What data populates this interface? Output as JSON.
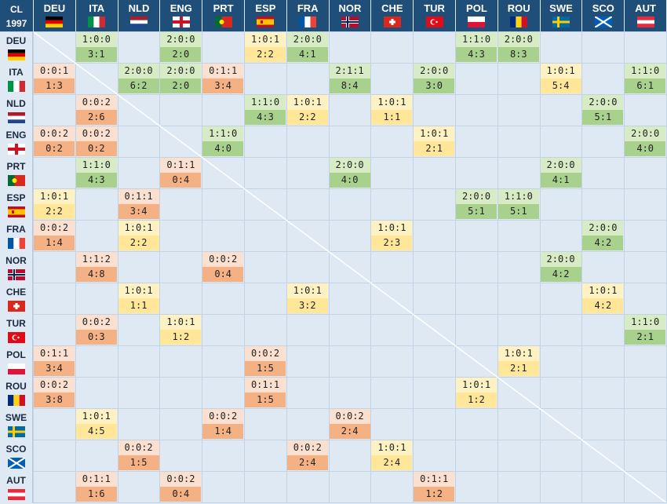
{
  "corner": {
    "line1": "CL",
    "line2": "1997"
  },
  "teams": [
    "DEU",
    "ITA",
    "NLD",
    "ENG",
    "PRT",
    "ESP",
    "FRA",
    "NOR",
    "CHE",
    "TUR",
    "POL",
    "ROU",
    "SWE",
    "SCO",
    "AUT"
  ],
  "legend_colors": {
    "win": "#a9d18e",
    "draw": "#ffe699",
    "loss": "#f4b183",
    "header": "#1f4e79"
  },
  "cells": [
    {
      "row": "DEU",
      "col": "ITA",
      "record": "1:0:0",
      "goals": "3:1",
      "result": "win"
    },
    {
      "row": "DEU",
      "col": "ENG",
      "record": "2:0:0",
      "goals": "2:0",
      "result": "win"
    },
    {
      "row": "DEU",
      "col": "ESP",
      "record": "1:0:1",
      "goals": "2:2",
      "result": "draw"
    },
    {
      "row": "DEU",
      "col": "FRA",
      "record": "2:0:0",
      "goals": "4:1",
      "result": "win"
    },
    {
      "row": "DEU",
      "col": "POL",
      "record": "1:1:0",
      "goals": "4:3",
      "result": "win"
    },
    {
      "row": "DEU",
      "col": "ROU",
      "record": "2:0:0",
      "goals": "8:3",
      "result": "win"
    },
    {
      "row": "ITA",
      "col": "DEU",
      "record": "0:0:1",
      "goals": "1:3",
      "result": "loss"
    },
    {
      "row": "ITA",
      "col": "NLD",
      "record": "2:0:0",
      "goals": "6:2",
      "result": "win"
    },
    {
      "row": "ITA",
      "col": "ENG",
      "record": "2:0:0",
      "goals": "2:0",
      "result": "win"
    },
    {
      "row": "ITA",
      "col": "PRT",
      "record": "0:1:1",
      "goals": "3:4",
      "result": "loss"
    },
    {
      "row": "ITA",
      "col": "NOR",
      "record": "2:1:1",
      "goals": "8:4",
      "result": "win"
    },
    {
      "row": "ITA",
      "col": "TUR",
      "record": "2:0:0",
      "goals": "3:0",
      "result": "win"
    },
    {
      "row": "ITA",
      "col": "SWE",
      "record": "1:0:1",
      "goals": "5:4",
      "result": "draw"
    },
    {
      "row": "ITA",
      "col": "AUT",
      "record": "1:1:0",
      "goals": "6:1",
      "result": "win"
    },
    {
      "row": "NLD",
      "col": "ITA",
      "record": "0:0:2",
      "goals": "2:6",
      "result": "loss"
    },
    {
      "row": "NLD",
      "col": "ESP",
      "record": "1:1:0",
      "goals": "4:3",
      "result": "win"
    },
    {
      "row": "NLD",
      "col": "FRA",
      "record": "1:0:1",
      "goals": "2:2",
      "result": "draw"
    },
    {
      "row": "NLD",
      "col": "CHE",
      "record": "1:0:1",
      "goals": "1:1",
      "result": "draw"
    },
    {
      "row": "NLD",
      "col": "SCO",
      "record": "2:0:0",
      "goals": "5:1",
      "result": "win"
    },
    {
      "row": "ENG",
      "col": "DEU",
      "record": "0:0:2",
      "goals": "0:2",
      "result": "loss"
    },
    {
      "row": "ENG",
      "col": "ITA",
      "record": "0:0:2",
      "goals": "0:2",
      "result": "loss"
    },
    {
      "row": "ENG",
      "col": "PRT",
      "record": "1:1:0",
      "goals": "4:0",
      "result": "win"
    },
    {
      "row": "ENG",
      "col": "TUR",
      "record": "1:0:1",
      "goals": "2:1",
      "result": "draw"
    },
    {
      "row": "ENG",
      "col": "AUT",
      "record": "2:0:0",
      "goals": "4:0",
      "result": "win"
    },
    {
      "row": "PRT",
      "col": "ITA",
      "record": "1:1:0",
      "goals": "4:3",
      "result": "win"
    },
    {
      "row": "PRT",
      "col": "ENG",
      "record": "0:1:1",
      "goals": "0:4",
      "result": "loss"
    },
    {
      "row": "PRT",
      "col": "NOR",
      "record": "2:0:0",
      "goals": "4:0",
      "result": "win"
    },
    {
      "row": "PRT",
      "col": "SWE",
      "record": "2:0:0",
      "goals": "4:1",
      "result": "win"
    },
    {
      "row": "ESP",
      "col": "DEU",
      "record": "1:0:1",
      "goals": "2:2",
      "result": "draw"
    },
    {
      "row": "ESP",
      "col": "NLD",
      "record": "0:1:1",
      "goals": "3:4",
      "result": "loss"
    },
    {
      "row": "ESP",
      "col": "POL",
      "record": "2:0:0",
      "goals": "5:1",
      "result": "win"
    },
    {
      "row": "ESP",
      "col": "ROU",
      "record": "1:1:0",
      "goals": "5:1",
      "result": "win"
    },
    {
      "row": "FRA",
      "col": "DEU",
      "record": "0:0:2",
      "goals": "1:4",
      "result": "loss"
    },
    {
      "row": "FRA",
      "col": "NLD",
      "record": "1:0:1",
      "goals": "2:2",
      "result": "draw"
    },
    {
      "row": "FRA",
      "col": "CHE",
      "record": "1:0:1",
      "goals": "2:3",
      "result": "draw"
    },
    {
      "row": "FRA",
      "col": "SCO",
      "record": "2:0:0",
      "goals": "4:2",
      "result": "win"
    },
    {
      "row": "NOR",
      "col": "ITA",
      "record": "1:1:2",
      "goals": "4:8",
      "result": "loss"
    },
    {
      "row": "NOR",
      "col": "PRT",
      "record": "0:0:2",
      "goals": "0:4",
      "result": "loss"
    },
    {
      "row": "NOR",
      "col": "SWE",
      "record": "2:0:0",
      "goals": "4:2",
      "result": "win"
    },
    {
      "row": "CHE",
      "col": "NLD",
      "record": "1:0:1",
      "goals": "1:1",
      "result": "draw"
    },
    {
      "row": "CHE",
      "col": "FRA",
      "record": "1:0:1",
      "goals": "3:2",
      "result": "draw"
    },
    {
      "row": "CHE",
      "col": "SCO",
      "record": "1:0:1",
      "goals": "4:2",
      "result": "draw"
    },
    {
      "row": "TUR",
      "col": "ITA",
      "record": "0:0:2",
      "goals": "0:3",
      "result": "loss"
    },
    {
      "row": "TUR",
      "col": "ENG",
      "record": "1:0:1",
      "goals": "1:2",
      "result": "draw"
    },
    {
      "row": "TUR",
      "col": "AUT",
      "record": "1:1:0",
      "goals": "2:1",
      "result": "win"
    },
    {
      "row": "POL",
      "col": "DEU",
      "record": "0:1:1",
      "goals": "3:4",
      "result": "loss"
    },
    {
      "row": "POL",
      "col": "ESP",
      "record": "0:0:2",
      "goals": "1:5",
      "result": "loss"
    },
    {
      "row": "POL",
      "col": "ROU",
      "record": "1:0:1",
      "goals": "2:1",
      "result": "draw"
    },
    {
      "row": "ROU",
      "col": "DEU",
      "record": "0:0:2",
      "goals": "3:8",
      "result": "loss"
    },
    {
      "row": "ROU",
      "col": "ESP",
      "record": "0:1:1",
      "goals": "1:5",
      "result": "loss"
    },
    {
      "row": "ROU",
      "col": "POL",
      "record": "1:0:1",
      "goals": "1:2",
      "result": "draw"
    },
    {
      "row": "SWE",
      "col": "ITA",
      "record": "1:0:1",
      "goals": "4:5",
      "result": "draw"
    },
    {
      "row": "SWE",
      "col": "PRT",
      "record": "0:0:2",
      "goals": "1:4",
      "result": "loss"
    },
    {
      "row": "SWE",
      "col": "NOR",
      "record": "0:0:2",
      "goals": "2:4",
      "result": "loss"
    },
    {
      "row": "SCO",
      "col": "NLD",
      "record": "0:0:2",
      "goals": "1:5",
      "result": "loss"
    },
    {
      "row": "SCO",
      "col": "FRA",
      "record": "0:0:2",
      "goals": "2:4",
      "result": "loss"
    },
    {
      "row": "SCO",
      "col": "CHE",
      "record": "1:0:1",
      "goals": "2:4",
      "result": "draw"
    },
    {
      "row": "AUT",
      "col": "ITA",
      "record": "0:1:1",
      "goals": "1:6",
      "result": "loss"
    },
    {
      "row": "AUT",
      "col": "ENG",
      "record": "0:0:2",
      "goals": "0:4",
      "result": "loss"
    },
    {
      "row": "AUT",
      "col": "TUR",
      "record": "0:1:1",
      "goals": "1:2",
      "result": "loss"
    }
  ]
}
